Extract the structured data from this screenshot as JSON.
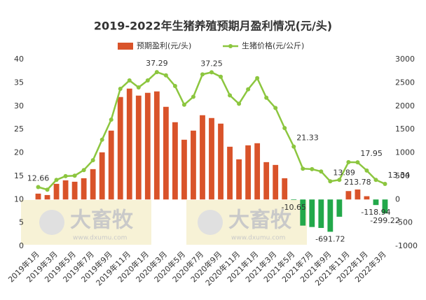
{
  "chart_data": {
    "type": "bar_line",
    "title": "2019-2022年生猪养殖预期月盈利情况(元/头)",
    "watermark": "大畜牧",
    "watermark_url": "www.dxumu.com",
    "categories": [
      "2019年1月",
      null,
      "2019年3月",
      null,
      "2019年5月",
      null,
      "2019年7月",
      null,
      "2019年9月",
      null,
      "2019年11月",
      null,
      "2020年1月",
      null,
      "2020年3月",
      null,
      "2020年5月",
      null,
      "2020年7月",
      null,
      "2020年9月",
      null,
      "2020年11月",
      null,
      "2021年1月",
      null,
      "2021年3月",
      null,
      "2021年5月",
      null,
      "2021年7月",
      null,
      "2021年9月",
      null,
      "2021年11月",
      null,
      "2022年1月",
      null,
      "2022年3月"
    ],
    "series": [
      {
        "name": "预期盈利(元/头)",
        "type": "bar",
        "axis": "y2",
        "color": "#d9532a",
        "negative_color": "#22a84a",
        "values": [
          125,
          95,
          335,
          410,
          380,
          455,
          650,
          1010,
          1475,
          2195,
          2375,
          2225,
          2285,
          2315,
          1985,
          1655,
          1280,
          1475,
          1805,
          1745,
          1625,
          1130,
          860,
          1160,
          1205,
          800,
          740,
          455,
          -10.65,
          -560,
          -590,
          -610,
          -691.72,
          -370,
          180,
          213.78,
          70,
          -118.94,
          -299.22
        ],
        "label_points": [
          28,
          32,
          35,
          37,
          38
        ]
      },
      {
        "name": "生猪价格(元/公斤)",
        "type": "line",
        "axis": "y",
        "color": "#8cc63f",
        "values": [
          12.66,
          12.1,
          14.2,
          15.0,
          15.1,
          16.3,
          18.4,
          22.8,
          27.1,
          33.7,
          35.5,
          34.0,
          35.5,
          37.29,
          36.6,
          34.3,
          30.3,
          32.0,
          36.8,
          37.25,
          36.3,
          32.3,
          30.5,
          33.6,
          36.0,
          31.8,
          29.6,
          25.3,
          21.33,
          16.6,
          16.5,
          16.0,
          13.89,
          14.2,
          18.0,
          17.95,
          16.2,
          14.2,
          13.34
        ],
        "label_points": [
          0,
          13,
          19,
          28,
          32,
          35,
          38
        ]
      }
    ],
    "ylim": [
      0,
      40
    ],
    "yticks": [
      0,
      5,
      10,
      15,
      20,
      25,
      30,
      35,
      40
    ],
    "y2lim": [
      -1000,
      3000
    ],
    "y2ticks": [
      -1000,
      -500,
      0,
      500,
      1000,
      1500,
      2000,
      2500,
      3000
    ],
    "legend": "top"
  }
}
